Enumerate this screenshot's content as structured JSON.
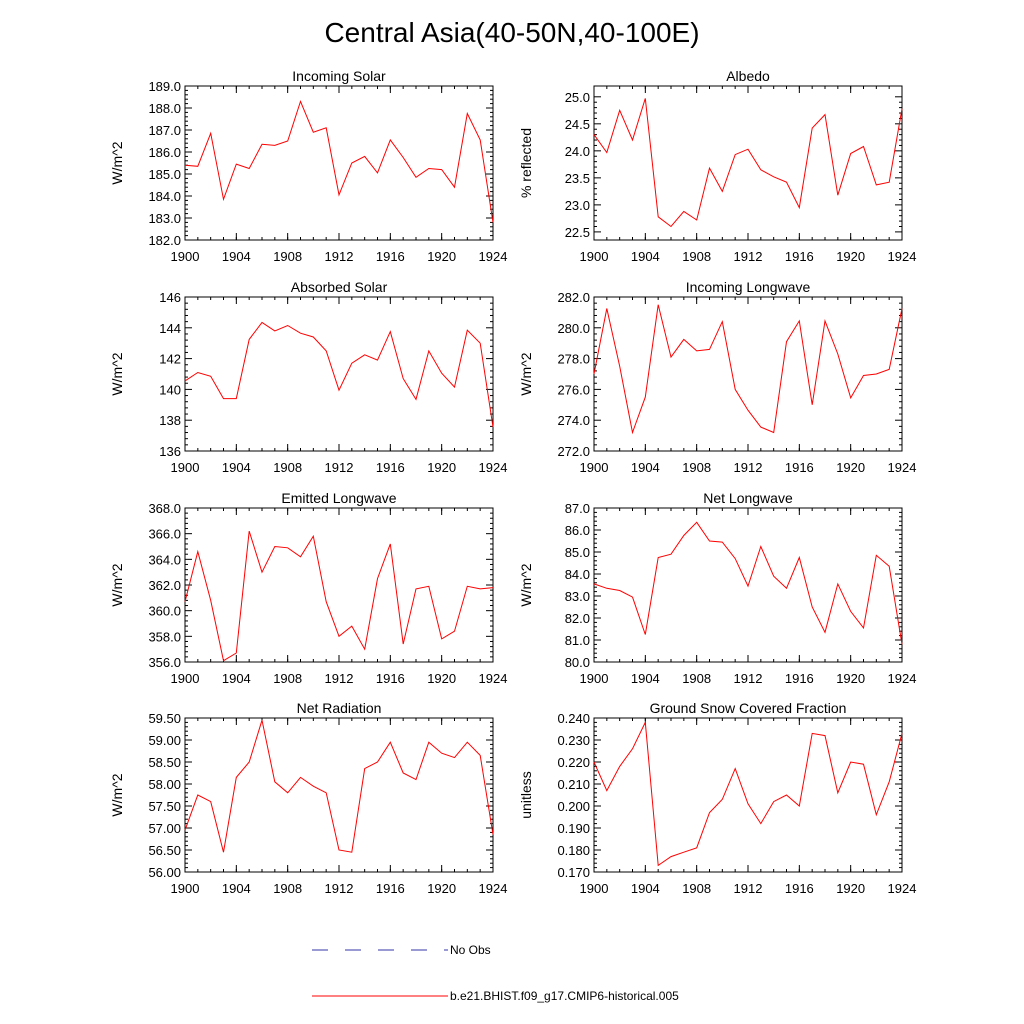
{
  "figure": {
    "title": "Central Asia(40-50N,40-100E)"
  },
  "colors": {
    "model_line": "#ff0000",
    "obs_line": "#3333aa",
    "axis": "#000000"
  },
  "legend": {
    "obs_label": "No Obs",
    "model_label": "b.e21.BHIST.f09_g17.CMIP6-historical.005"
  },
  "chart_data": [
    {
      "type": "line",
      "title": "Incoming Solar",
      "xlabel": "",
      "ylabel": "W/m^2",
      "xlim": [
        1900,
        1924
      ],
      "xticks": [
        1900,
        1904,
        1908,
        1912,
        1916,
        1920,
        1924
      ],
      "ylim": [
        182.0,
        189.0
      ],
      "yticks": [
        182.0,
        183.0,
        184.0,
        185.0,
        186.0,
        187.0,
        188.0,
        189.0
      ],
      "ytick_labels": [
        "182.0",
        "183.0",
        "184.0",
        "185.0",
        "186.0",
        "187.0",
        "188.0",
        "189.0"
      ],
      "x": [
        1900,
        1901,
        1902,
        1903,
        1904,
        1905,
        1906,
        1907,
        1908,
        1909,
        1910,
        1911,
        1912,
        1913,
        1914,
        1915,
        1916,
        1917,
        1918,
        1919,
        1920,
        1921,
        1922,
        1923,
        1924
      ],
      "series": [
        {
          "name": "b.e21.BHIST.f09_g17.CMIP6-historical.005",
          "values": [
            185.4,
            185.35,
            186.85,
            183.85,
            185.45,
            185.25,
            186.35,
            186.3,
            186.5,
            188.3,
            186.9,
            187.1,
            184.05,
            185.5,
            185.8,
            185.05,
            186.55,
            185.75,
            184.85,
            185.25,
            185.2,
            184.4,
            187.75,
            186.55,
            182.8
          ]
        }
      ]
    },
    {
      "type": "line",
      "title": "Albedo",
      "xlabel": "",
      "ylabel": "% reflected",
      "xlim": [
        1900,
        1924
      ],
      "xticks": [
        1900,
        1904,
        1908,
        1912,
        1916,
        1920,
        1924
      ],
      "ylim": [
        22.35,
        25.2
      ],
      "yticks": [
        22.5,
        23.0,
        23.5,
        24.0,
        24.5,
        25.0
      ],
      "ytick_labels": [
        "22.5",
        "23.0",
        "23.5",
        "24.0",
        "24.5",
        "25.0"
      ],
      "x": [
        1900,
        1901,
        1902,
        1903,
        1904,
        1905,
        1906,
        1907,
        1908,
        1909,
        1910,
        1911,
        1912,
        1913,
        1914,
        1915,
        1916,
        1917,
        1918,
        1919,
        1920,
        1921,
        1922,
        1923,
        1924
      ],
      "series": [
        {
          "name": "b.e21.BHIST.f09_g17.CMIP6-historical.005",
          "values": [
            24.3,
            23.97,
            24.75,
            24.2,
            24.97,
            22.78,
            22.6,
            22.88,
            22.72,
            23.68,
            23.25,
            23.93,
            24.03,
            23.65,
            23.52,
            23.42,
            22.95,
            24.42,
            24.67,
            23.18,
            23.95,
            24.08,
            23.37,
            23.42,
            24.78
          ]
        }
      ]
    },
    {
      "type": "line",
      "title": "Absorbed Solar",
      "xlabel": "",
      "ylabel": "W/m^2",
      "xlim": [
        1900,
        1924
      ],
      "xticks": [
        1900,
        1904,
        1908,
        1912,
        1916,
        1920,
        1924
      ],
      "ylim": [
        136,
        146
      ],
      "yticks": [
        136,
        138,
        140,
        142,
        144,
        146
      ],
      "ytick_labels": [
        "136",
        "138",
        "140",
        "142",
        "144",
        "146"
      ],
      "x": [
        1900,
        1901,
        1902,
        1903,
        1904,
        1905,
        1906,
        1907,
        1908,
        1909,
        1910,
        1911,
        1912,
        1913,
        1914,
        1915,
        1916,
        1917,
        1918,
        1919,
        1920,
        1921,
        1922,
        1923,
        1924
      ],
      "series": [
        {
          "name": "b.e21.BHIST.f09_g17.CMIP6-historical.005",
          "values": [
            140.55,
            141.1,
            140.85,
            139.4,
            139.4,
            143.25,
            144.35,
            143.8,
            144.15,
            143.65,
            143.4,
            142.5,
            139.95,
            141.7,
            142.25,
            141.9,
            143.75,
            140.7,
            139.35,
            142.5,
            141.05,
            140.15,
            143.85,
            143.0,
            137.55
          ]
        }
      ]
    },
    {
      "type": "line",
      "title": "Incoming Longwave",
      "xlabel": "",
      "ylabel": "W/m^2",
      "xlim": [
        1900,
        1924
      ],
      "xticks": [
        1900,
        1904,
        1908,
        1912,
        1916,
        1920,
        1924
      ],
      "ylim": [
        272.0,
        282.0
      ],
      "yticks": [
        272.0,
        274.0,
        276.0,
        278.0,
        280.0,
        282.0
      ],
      "ytick_labels": [
        "272.0",
        "274.0",
        "276.0",
        "278.0",
        "280.0",
        "282.0"
      ],
      "x": [
        1900,
        1901,
        1902,
        1903,
        1904,
        1905,
        1906,
        1907,
        1908,
        1909,
        1910,
        1911,
        1912,
        1913,
        1914,
        1915,
        1916,
        1917,
        1918,
        1919,
        1920,
        1921,
        1922,
        1923,
        1924
      ],
      "series": [
        {
          "name": "b.e21.BHIST.f09_g17.CMIP6-historical.005",
          "values": [
            277.0,
            281.25,
            277.5,
            273.2,
            275.5,
            281.5,
            278.1,
            279.25,
            278.5,
            278.6,
            280.4,
            276.0,
            274.65,
            273.55,
            273.2,
            279.1,
            280.45,
            275.0,
            280.45,
            278.3,
            275.45,
            276.9,
            277.0,
            277.3,
            281.25
          ]
        }
      ]
    },
    {
      "type": "line",
      "title": "Emitted Longwave",
      "xlabel": "",
      "ylabel": "W/m^2",
      "xlim": [
        1900,
        1924
      ],
      "xticks": [
        1900,
        1904,
        1908,
        1912,
        1916,
        1920,
        1924
      ],
      "ylim": [
        356.0,
        368.0
      ],
      "yticks": [
        356.0,
        358.0,
        360.0,
        362.0,
        364.0,
        366.0,
        368.0
      ],
      "ytick_labels": [
        "356.0",
        "358.0",
        "360.0",
        "362.0",
        "364.0",
        "366.0",
        "368.0"
      ],
      "x": [
        1900,
        1901,
        1902,
        1903,
        1904,
        1905,
        1906,
        1907,
        1908,
        1909,
        1910,
        1911,
        1912,
        1913,
        1914,
        1915,
        1916,
        1917,
        1918,
        1919,
        1920,
        1921,
        1922,
        1923,
        1924
      ],
      "series": [
        {
          "name": "b.e21.BHIST.f09_g17.CMIP6-historical.005",
          "values": [
            360.7,
            364.6,
            360.8,
            356.1,
            356.7,
            366.2,
            363.0,
            365.0,
            364.9,
            364.2,
            365.8,
            360.7,
            358.0,
            358.8,
            357.0,
            362.5,
            365.2,
            357.4,
            361.7,
            361.9,
            357.8,
            358.4,
            361.9,
            361.7,
            361.8
          ]
        }
      ]
    },
    {
      "type": "line",
      "title": "Net Longwave",
      "xlabel": "",
      "ylabel": "W/m^2",
      "xlim": [
        1900,
        1924
      ],
      "xticks": [
        1900,
        1904,
        1908,
        1912,
        1916,
        1920,
        1924
      ],
      "ylim": [
        80.0,
        87.0
      ],
      "yticks": [
        80.0,
        81.0,
        82.0,
        83.0,
        84.0,
        85.0,
        86.0,
        87.0
      ],
      "ytick_labels": [
        "80.0",
        "81.0",
        "82.0",
        "83.0",
        "84.0",
        "85.0",
        "86.0",
        "87.0"
      ],
      "x": [
        1900,
        1901,
        1902,
        1903,
        1904,
        1905,
        1906,
        1907,
        1908,
        1909,
        1910,
        1911,
        1912,
        1913,
        1914,
        1915,
        1916,
        1917,
        1918,
        1919,
        1920,
        1921,
        1922,
        1923,
        1924
      ],
      "series": [
        {
          "name": "b.e21.BHIST.f09_g17.CMIP6-historical.005",
          "values": [
            83.55,
            83.35,
            83.25,
            82.95,
            81.25,
            84.75,
            84.9,
            85.75,
            86.35,
            85.5,
            85.45,
            84.7,
            83.45,
            85.25,
            83.9,
            83.35,
            84.75,
            82.5,
            81.35,
            83.55,
            82.3,
            81.55,
            84.85,
            84.35,
            80.8
          ]
        }
      ]
    },
    {
      "type": "line",
      "title": "Net Radiation",
      "xlabel": "",
      "ylabel": "W/m^2",
      "xlim": [
        1900,
        1924
      ],
      "xticks": [
        1900,
        1904,
        1908,
        1912,
        1916,
        1920,
        1924
      ],
      "ylim": [
        56.0,
        59.5
      ],
      "yticks": [
        56.0,
        56.5,
        57.0,
        57.5,
        58.0,
        58.5,
        59.0,
        59.5
      ],
      "ytick_labels": [
        "56.00",
        "56.50",
        "57.00",
        "57.50",
        "58.00",
        "58.50",
        "59.00",
        "59.50"
      ],
      "x": [
        1900,
        1901,
        1902,
        1903,
        1904,
        1905,
        1906,
        1907,
        1908,
        1909,
        1910,
        1911,
        1912,
        1913,
        1914,
        1915,
        1916,
        1917,
        1918,
        1919,
        1920,
        1921,
        1922,
        1923,
        1924
      ],
      "series": [
        {
          "name": "b.e21.BHIST.f09_g17.CMIP6-historical.005",
          "values": [
            56.95,
            57.75,
            57.6,
            56.45,
            58.15,
            58.5,
            59.45,
            58.05,
            57.8,
            58.15,
            57.95,
            57.8,
            56.5,
            56.45,
            58.35,
            58.5,
            58.95,
            58.25,
            58.1,
            58.95,
            58.7,
            58.6,
            58.95,
            58.65,
            56.85
          ]
        }
      ]
    },
    {
      "type": "line",
      "title": "Ground Snow Covered Fraction",
      "xlabel": "",
      "ylabel": "unitless",
      "xlim": [
        1900,
        1924
      ],
      "xticks": [
        1900,
        1904,
        1908,
        1912,
        1916,
        1920,
        1924
      ],
      "ylim": [
        0.17,
        0.24
      ],
      "yticks": [
        0.17,
        0.18,
        0.19,
        0.2,
        0.21,
        0.22,
        0.23,
        0.24
      ],
      "ytick_labels": [
        "0.170",
        "0.180",
        "0.190",
        "0.200",
        "0.210",
        "0.220",
        "0.230",
        "0.240"
      ],
      "x": [
        1900,
        1901,
        1902,
        1903,
        1904,
        1905,
        1906,
        1907,
        1908,
        1909,
        1910,
        1911,
        1912,
        1913,
        1914,
        1915,
        1916,
        1917,
        1918,
        1919,
        1920,
        1921,
        1922,
        1923,
        1924
      ],
      "series": [
        {
          "name": "b.e21.BHIST.f09_g17.CMIP6-historical.005",
          "values": [
            0.22,
            0.207,
            0.218,
            0.226,
            0.238,
            0.173,
            0.177,
            0.179,
            0.181,
            0.197,
            0.203,
            0.217,
            0.201,
            0.192,
            0.202,
            0.205,
            0.2,
            0.233,
            0.232,
            0.206,
            0.22,
            0.219,
            0.196,
            0.211,
            0.233
          ]
        }
      ]
    }
  ]
}
